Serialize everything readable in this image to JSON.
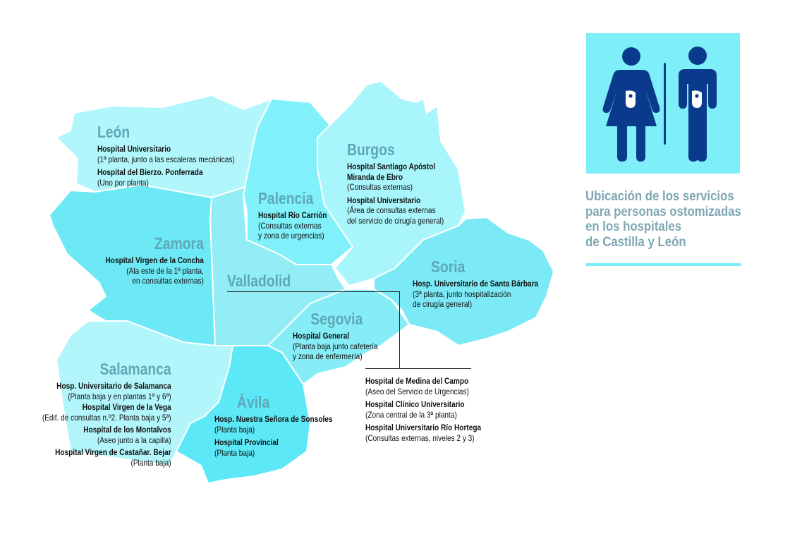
{
  "title": {
    "lines": [
      "Ubicación de los servicios",
      "para personas ostomizadas",
      "en los hospitales",
      "de Castilla y León"
    ]
  },
  "colors": {
    "label": "#5ea8b6",
    "title": "#7fa7b3",
    "icon_bg": "#7eeff8",
    "icon_figure": "#0a3a8c"
  },
  "icon": "ostomy-restroom-icon",
  "provinces": {
    "leon": {
      "name": "León",
      "hospitals": [
        {
          "name": "Hospital Universitario",
          "detail": "(1ª planta, junto a las escaleras mecánicas)"
        },
        {
          "name": "Hospital del Bierzo. Ponferrada",
          "detail": "(Uno por planta)"
        }
      ]
    },
    "zamora": {
      "name": "Zamora",
      "hospitals": [
        {
          "name": "Hospital Virgen de la Concha",
          "detail": "(Ala este de la 1º planta,\nen consultas externas)"
        }
      ]
    },
    "palencia": {
      "name": "Palencia",
      "hospitals": [
        {
          "name": "Hospital Río Carrión",
          "detail": "(Consultas externas\ny zona de urgencias)"
        }
      ]
    },
    "burgos": {
      "name": "Burgos",
      "hospitals": [
        {
          "name": "Hospital Santiago Apóstol\nMiranda de Ebro",
          "detail": "(Consultas externas)"
        },
        {
          "name": "Hospital Universitario",
          "detail": "(Área de consultas externas\ndel servicio de cirugía general)"
        }
      ]
    },
    "soria": {
      "name": "Soria",
      "hospitals": [
        {
          "name": "Hosp. Universitario de Santa Bárbara",
          "detail": "(3ª planta, junto hospitalización\nde cirugía general)"
        }
      ]
    },
    "valladolid": {
      "name": "Valladolid",
      "hospitals": [
        {
          "name": "Hospital de Medina del Campo",
          "detail": "(Aseo del Servicio de Urgencias)"
        },
        {
          "name": "Hospital Clínico Universitario",
          "detail": "(Zona central de la 3ª planta)"
        },
        {
          "name": "Hospital Universitario Río Hortega",
          "detail": "(Consultas externas, niveles 2 y 3)"
        }
      ]
    },
    "segovia": {
      "name": "Segovia",
      "hospitals": [
        {
          "name": "Hospital General",
          "detail": "(Planta baja junto cafetería\ny zona de enfermería)"
        }
      ]
    },
    "salamanca": {
      "name": "Salamanca",
      "hospitals": [
        {
          "name": "Hosp. Universitario de Salamanca",
          "detail": "(Planta baja y en plantas 1ª y 6ª)"
        },
        {
          "name": "Hospital Virgen de la Vega",
          "detail": "(Edif. de consultas n.º2. Planta baja y 5ª)"
        },
        {
          "name": "Hospital de los Montalvos",
          "detail": "(Aseo junto a la capilla)"
        },
        {
          "name": "Hospital Virgen de Castañar. Bejar",
          "detail": "(Planta baja)"
        }
      ]
    },
    "avila": {
      "name": "Ávila",
      "hospitals": [
        {
          "name": "Hosp. Nuestra Señora de Sonsoles",
          "detail": "(Planta baja)"
        },
        {
          "name": "Hospital Provincial",
          "detail": "(Planta baja)"
        }
      ]
    }
  }
}
